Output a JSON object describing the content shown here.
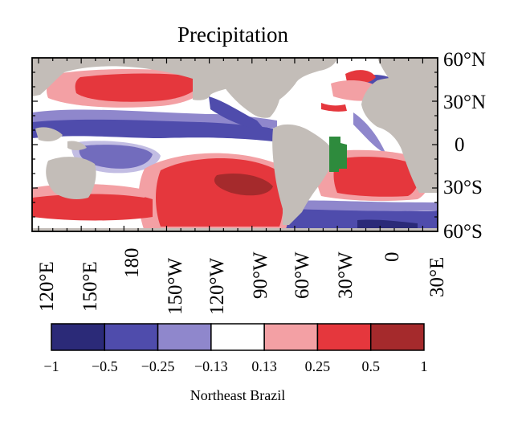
{
  "title": "Precipitation",
  "latitude_labels": [
    "60°N",
    "30°N",
    "0",
    "30°S",
    "60°S"
  ],
  "longitude_labels": [
    "120°E",
    "150°E",
    "180",
    "150°W",
    "120°W",
    "90°W",
    "60°W",
    "30°W",
    "0",
    "30°E"
  ],
  "colorbar": {
    "label": "Northeast Brazil",
    "ticks": [
      "−1",
      "−0.5",
      "−0.25",
      "−0.13",
      "0.13",
      "0.25",
      "0.5",
      "1"
    ],
    "colors": [
      "#2b2a78",
      "#4f4cac",
      "#8f87cc",
      "#ffffff",
      "#f3a0a4",
      "#e5373d",
      "#a52a2c"
    ]
  },
  "map_colors": {
    "land": "#c3bdb8",
    "region_highlight": "#2e8b3d"
  },
  "highlighted_region": "Northeast Brazil"
}
